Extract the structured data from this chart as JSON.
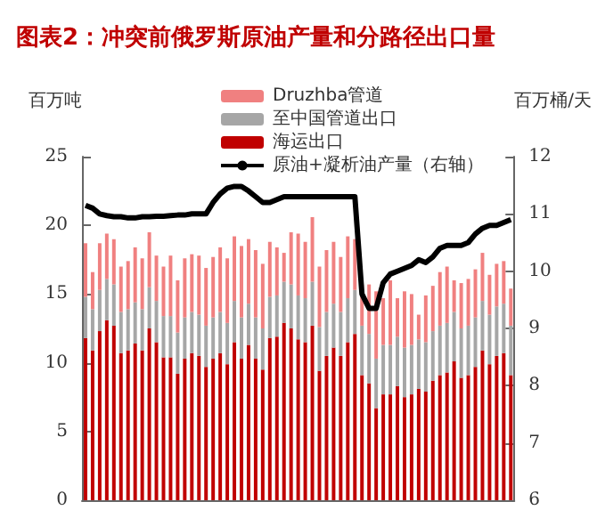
{
  "chart_data": {
    "type": "bar",
    "title": "图表2：冲突前俄罗斯原油产量和分路径出口量",
    "ylabel": "百万吨",
    "y2label": "百万桶/天",
    "stacked": true,
    "legend": "top",
    "grid": false,
    "tick_labels": "y",
    "categories": [
      null,
      null,
      null,
      null,
      null,
      null,
      null,
      null,
      null,
      null,
      null,
      null,
      null,
      null,
      null,
      null,
      null,
      null,
      null,
      null,
      null,
      null,
      null,
      null,
      null,
      null,
      null,
      null,
      null,
      null,
      null,
      null,
      null,
      null,
      null,
      null,
      null,
      null,
      null,
      null,
      null,
      null,
      null,
      null,
      null,
      null,
      null,
      null,
      null,
      null,
      null,
      null,
      null,
      null,
      null,
      null,
      null,
      null,
      null,
      null,
      null
    ],
    "ylim": [
      0,
      25
    ],
    "yticks": [
      0,
      5,
      10,
      15,
      20,
      25
    ],
    "y2lim": [
      6,
      12
    ],
    "y2ticks": [
      6,
      7,
      8,
      9,
      10,
      11,
      12
    ],
    "series": [
      {
        "name": "海运出口",
        "color": "#c00000",
        "values": [
          11.8,
          10.9,
          12.3,
          13.1,
          12.7,
          10.7,
          10.9,
          11.4,
          10.9,
          12.5,
          11.5,
          10.4,
          10.4,
          9.2,
          10.3,
          10.7,
          10.5,
          9.7,
          10.3,
          10.7,
          9.9,
          11.5,
          10.3,
          11.3,
          10.3,
          9.5,
          11.8,
          11.9,
          12.9,
          12.5,
          11.7,
          11.5,
          12.7,
          9.4,
          10.5,
          11.1,
          10.5,
          11.5,
          12.1,
          9.1,
          8.5,
          6.7,
          7.7,
          7.7,
          8.3,
          7.5,
          7.7,
          8.1,
          7.9,
          8.7,
          9.1,
          9.3,
          10.1,
          8.9,
          9.1,
          9.7,
          10.9,
          9.9,
          10.5,
          10.7,
          9.1
        ]
      },
      {
        "name": "至中国管道出口",
        "color": "#a6a6a6",
        "values": [
          3.0,
          3.0,
          3.0,
          3.0,
          3.0,
          3.0,
          3.0,
          3.0,
          3.0,
          3.0,
          3.0,
          3.0,
          3.0,
          3.0,
          3.0,
          3.0,
          3.0,
          3.0,
          3.0,
          3.0,
          3.0,
          3.0,
          3.0,
          3.0,
          3.0,
          3.0,
          3.0,
          3.0,
          3.0,
          3.2,
          3.2,
          3.2,
          3.2,
          3.2,
          3.2,
          3.2,
          3.2,
          3.2,
          3.2,
          3.6,
          3.6,
          3.6,
          3.6,
          3.6,
          3.6,
          3.6,
          3.6,
          3.6,
          3.6,
          3.6,
          3.6,
          3.6,
          3.6,
          3.6,
          3.6,
          3.6,
          3.6,
          3.6,
          3.6,
          3.6,
          3.6
        ]
      },
      {
        "name": "Druzhba管道",
        "color": "#f08080",
        "values": [
          3.9,
          2.7,
          3.4,
          3.3,
          3.3,
          3.3,
          3.5,
          4.0,
          3.7,
          4.0,
          3.3,
          3.6,
          4.4,
          3.8,
          4.3,
          4.2,
          4.3,
          4.2,
          4.4,
          4.7,
          4.7,
          4.7,
          5.2,
          4.7,
          4.9,
          4.7,
          4.0,
          3.5,
          2.1,
          3.8,
          4.5,
          4.1,
          4.7,
          4.4,
          4.5,
          4.5,
          4.0,
          4.5,
          3.7,
          3.0,
          3.6,
          4.9,
          3.4,
          4.7,
          2.8,
          4.1,
          3.7,
          1.8,
          3.4,
          3.3,
          3.9,
          4.1,
          2.3,
          3.3,
          3.4,
          3.5,
          3.5,
          2.9,
          3.1,
          3.1,
          2.7
        ]
      },
      {
        "name": "原油+凝析油产量（右轴）",
        "type": "line",
        "axis": "y2",
        "color": "#000000",
        "values": [
          11.15,
          11.1,
          11.0,
          10.97,
          10.95,
          10.95,
          10.93,
          10.93,
          10.95,
          10.95,
          10.96,
          10.96,
          10.97,
          10.98,
          10.98,
          11.0,
          11.0,
          11.0,
          11.2,
          11.35,
          11.45,
          11.48,
          11.48,
          11.4,
          11.3,
          11.2,
          11.2,
          11.25,
          11.3,
          11.3,
          11.3,
          11.3,
          11.3,
          11.3,
          11.3,
          11.3,
          11.3,
          11.3,
          11.3,
          9.6,
          9.35,
          9.35,
          9.8,
          9.95,
          10.0,
          10.05,
          10.1,
          10.2,
          10.15,
          10.25,
          10.4,
          10.45,
          10.45,
          10.45,
          10.5,
          10.65,
          10.75,
          10.8,
          10.8,
          10.85,
          10.9
        ]
      }
    ]
  }
}
